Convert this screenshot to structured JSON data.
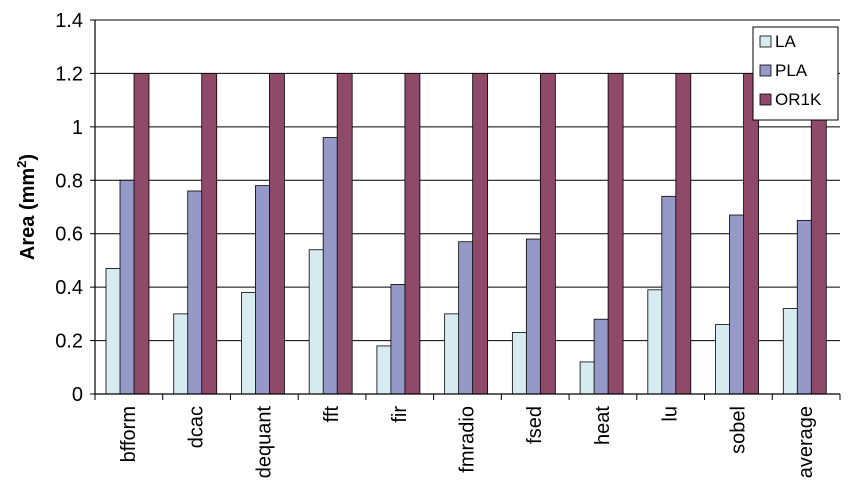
{
  "chart_data": {
    "type": "bar",
    "title": "",
    "xlabel": "",
    "ylabel": "Area (mm",
    "ylabel_sup": "2",
    "ylabel_close": ")",
    "ylim": [
      0,
      1.4
    ],
    "yticks": [
      "0",
      "0.2",
      "0.4",
      "0.6",
      "0.8",
      "1",
      "1.2",
      "1.4"
    ],
    "grid": true,
    "legend_position": "top-right",
    "categories": [
      "bfform",
      "dcac",
      "dequant",
      "fft",
      "fir",
      "fmradio",
      "fsed",
      "heat",
      "lu",
      "sobel",
      "average"
    ],
    "series": [
      {
        "name": "LA",
        "color": "#d7ecf1",
        "values": [
          0.47,
          0.3,
          0.38,
          0.54,
          0.18,
          0.3,
          0.23,
          0.12,
          0.39,
          0.26,
          0.32
        ]
      },
      {
        "name": "PLA",
        "color": "#9499c8",
        "values": [
          0.8,
          0.76,
          0.78,
          0.96,
          0.41,
          0.57,
          0.58,
          0.28,
          0.74,
          0.67,
          0.65
        ]
      },
      {
        "name": "OR1K",
        "color": "#8e4a68",
        "values": [
          1.2,
          1.2,
          1.2,
          1.2,
          1.2,
          1.2,
          1.2,
          1.2,
          1.2,
          1.2,
          1.2
        ]
      }
    ]
  }
}
